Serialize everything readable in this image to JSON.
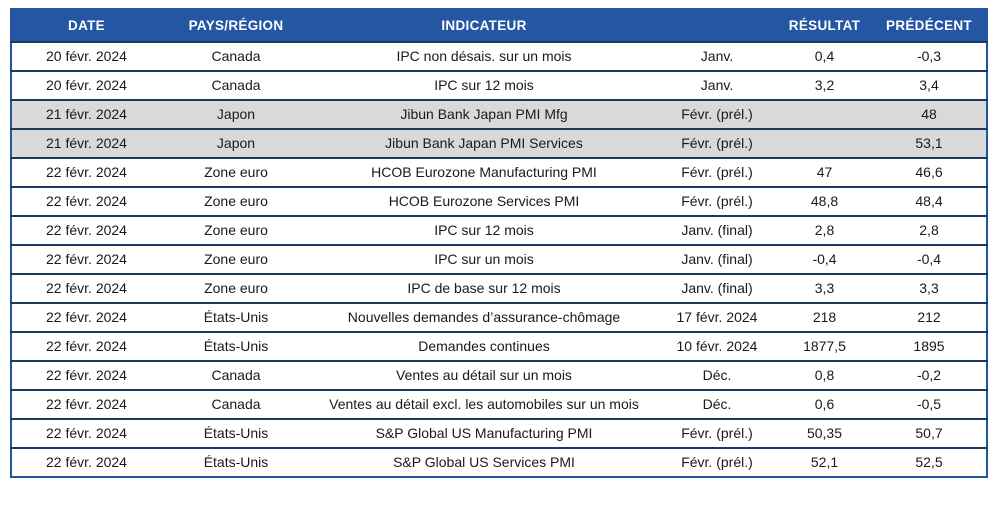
{
  "table": {
    "headers": [
      "DATE",
      "PAYS/RÉGION",
      "INDICATEUR",
      "",
      "RÉSULTAT",
      "PRÉDÉCENT"
    ],
    "header_bg_color": "#2456a3",
    "header_text_color": "#ffffff",
    "shaded_row_color": "#d9d9d9",
    "border_color": "#1b3a5f",
    "rows": [
      {
        "shaded": false,
        "cells": [
          "20 févr. 2024",
          "Canada",
          "IPC non désais. sur un mois",
          "Janv.",
          "0,4",
          "-0,3"
        ]
      },
      {
        "shaded": false,
        "cells": [
          "20 févr. 2024",
          "Canada",
          "IPC sur 12 mois",
          "Janv.",
          "3,2",
          "3,4"
        ]
      },
      {
        "shaded": true,
        "cells": [
          "21 févr. 2024",
          "Japon",
          "Jibun Bank Japan PMI Mfg",
          "Févr. (prél.)",
          "",
          "48"
        ]
      },
      {
        "shaded": true,
        "cells": [
          "21 févr. 2024",
          "Japon",
          "Jibun Bank Japan PMI Services",
          "Févr. (prél.)",
          "",
          "53,1"
        ]
      },
      {
        "shaded": false,
        "cells": [
          "22 févr. 2024",
          "Zone euro",
          "HCOB Eurozone Manufacturing PMI",
          "Févr. (prél.)",
          "47",
          "46,6"
        ]
      },
      {
        "shaded": false,
        "cells": [
          "22 févr. 2024",
          "Zone euro",
          "HCOB Eurozone Services PMI",
          "Févr. (prél.)",
          "48,8",
          "48,4"
        ]
      },
      {
        "shaded": false,
        "cells": [
          "22 févr. 2024",
          "Zone euro",
          "IPC sur 12 mois",
          "Janv. (final)",
          "2,8",
          "2,8"
        ]
      },
      {
        "shaded": false,
        "cells": [
          "22 févr. 2024",
          "Zone euro",
          "IPC sur un mois",
          "Janv. (final)",
          "-0,4",
          "-0,4"
        ]
      },
      {
        "shaded": false,
        "cells": [
          "22 févr. 2024",
          "Zone euro",
          "IPC de base sur 12 mois",
          "Janv. (final)",
          "3,3",
          "3,3"
        ]
      },
      {
        "shaded": false,
        "cells": [
          "22 févr. 2024",
          "États-Unis",
          "Nouvelles demandes d’assurance-chômage",
          "17 févr. 2024",
          "218",
          "212"
        ]
      },
      {
        "shaded": false,
        "cells": [
          "22 févr. 2024",
          "États-Unis",
          "Demandes continues",
          "10 févr. 2024",
          "1877,5",
          "1895"
        ]
      },
      {
        "shaded": false,
        "cells": [
          "22 févr. 2024",
          "Canada",
          "Ventes au détail sur un mois",
          "Déc.",
          "0,8",
          "-0,2"
        ]
      },
      {
        "shaded": false,
        "cells": [
          "22 févr. 2024",
          "Canada",
          "Ventes au détail excl. les automobiles sur un mois",
          "Déc.",
          "0,6",
          "-0,5"
        ]
      },
      {
        "shaded": false,
        "cells": [
          "22 févr. 2024",
          "États-Unis",
          "S&P Global US Manufacturing PMI",
          "Févr. (prél.)",
          "50,35",
          "50,7"
        ]
      },
      {
        "shaded": false,
        "cells": [
          "22 févr. 2024",
          "États-Unis",
          "S&P Global US Services PMI",
          "Févr. (prél.)",
          "52,1",
          "52,5"
        ]
      }
    ]
  }
}
